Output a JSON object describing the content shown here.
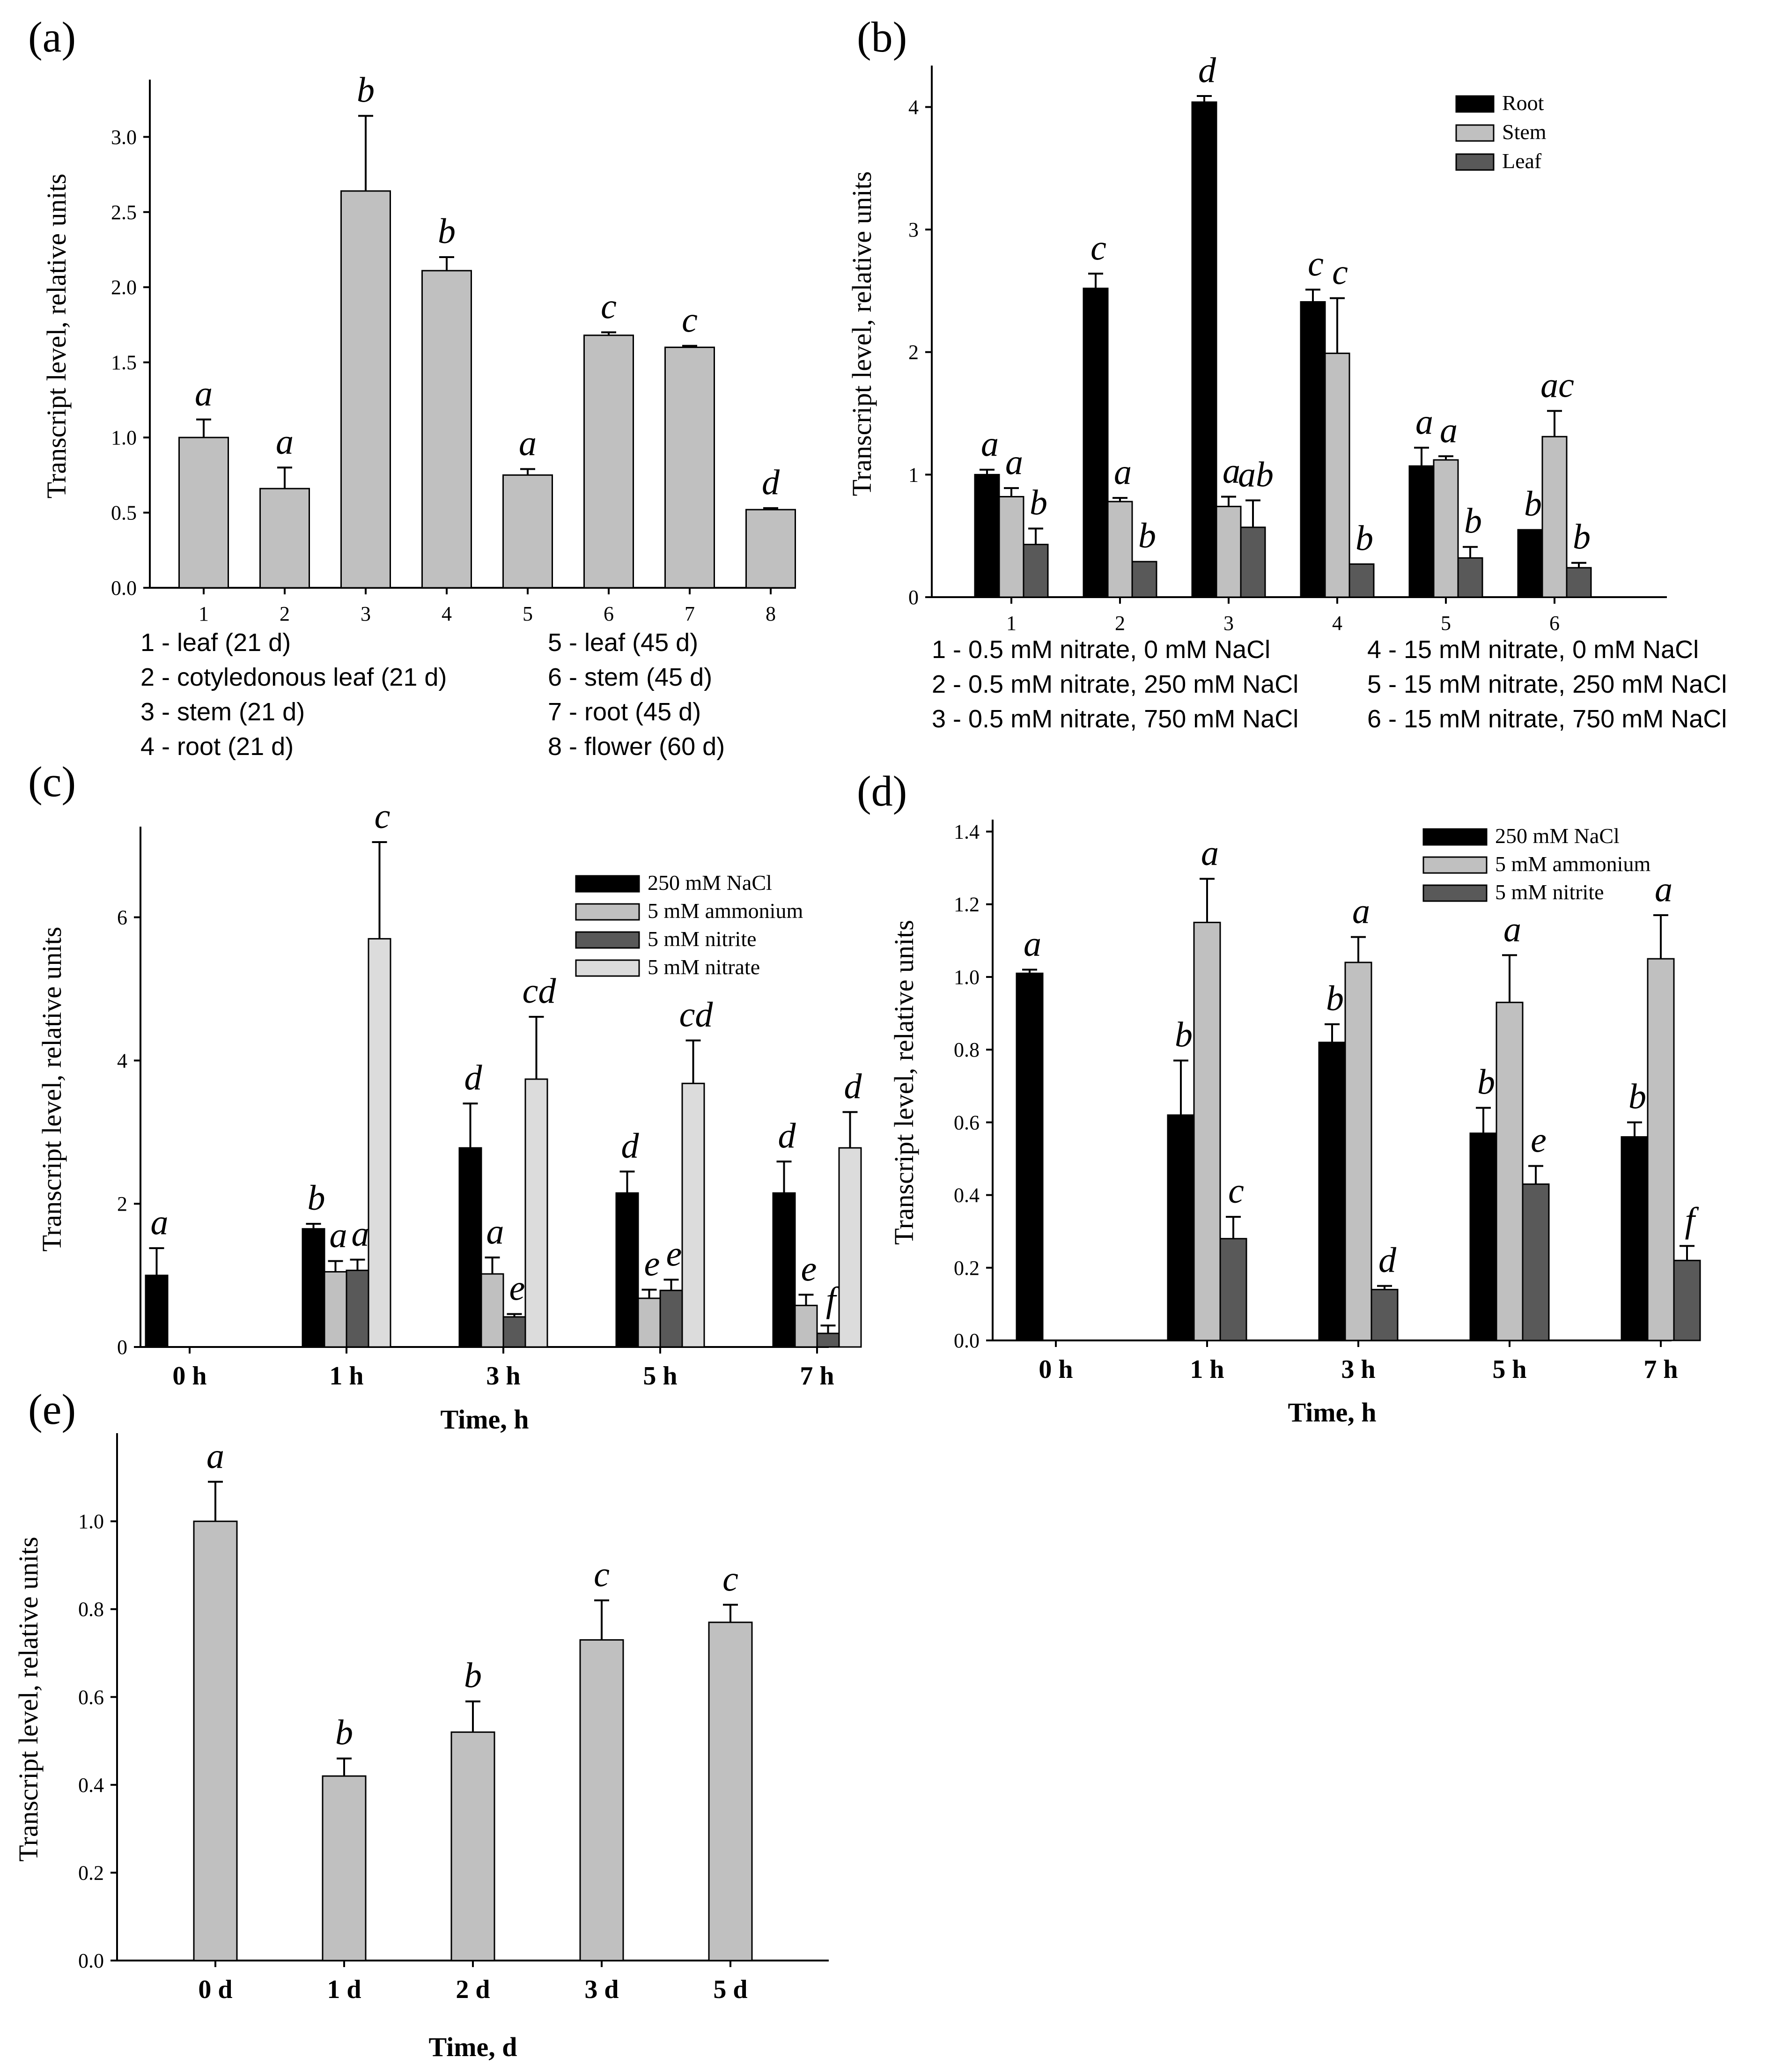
{
  "colors": {
    "black": "#000000",
    "light": "#c0c0c0",
    "dark": "#595959",
    "vlight": "#dcdcdc"
  },
  "chart_data": [
    {
      "id": "a",
      "panel_label": "(a)",
      "type": "bar",
      "categories": [
        "1",
        "2",
        "3",
        "4",
        "5",
        "6",
        "7",
        "8"
      ],
      "series": [
        {
          "name": "",
          "color": "#c0c0c0",
          "values": [
            1.0,
            0.66,
            2.64,
            2.11,
            0.75,
            1.68,
            1.6,
            0.52
          ],
          "errors": [
            0.12,
            0.14,
            0.5,
            0.09,
            0.04,
            0.02,
            0.01,
            0.01
          ],
          "letters": [
            "a",
            "a",
            "b",
            "b",
            "a",
            "c",
            "c",
            "d"
          ]
        }
      ],
      "xlabel": "",
      "ylabel": "Transcript level, relative units",
      "ylim": [
        0,
        3.35
      ],
      "yticks": [
        "0.0",
        "0.5",
        "1.0",
        "1.5",
        "2.0",
        "2.5",
        "3.0"
      ],
      "notes_left": [
        "1 - leaf (21 d)",
        "2 - cotyledonous leaf (21 d)",
        "3 - stem (21 d)",
        "4 - root (21 d)"
      ],
      "notes_right": [
        "5 - leaf (45 d)",
        "6 - stem (45 d)",
        "7 - root (45 d)",
        "8 - flower (60 d)"
      ]
    },
    {
      "id": "b",
      "panel_label": "(b)",
      "type": "bar",
      "categories": [
        "1",
        "2",
        "3",
        "4",
        "5",
        "6"
      ],
      "series": [
        {
          "name": "Root",
          "color": "#000000",
          "values": [
            1.0,
            2.52,
            4.04,
            2.41,
            1.07,
            0.55
          ],
          "errors": [
            0.04,
            0.12,
            0.05,
            0.1,
            0.15,
            0.0
          ],
          "letters": [
            "a",
            "c",
            "d",
            "c",
            "a",
            "b"
          ]
        },
        {
          "name": "Stem",
          "color": "#c0c0c0",
          "values": [
            0.82,
            0.78,
            0.74,
            1.99,
            1.12,
            1.31
          ],
          "errors": [
            0.07,
            0.03,
            0.08,
            0.45,
            0.03,
            0.21
          ],
          "letters": [
            "a",
            "a",
            "a",
            "c",
            "a",
            "ac"
          ]
        },
        {
          "name": "Leaf",
          "color": "#595959",
          "values": [
            0.43,
            0.29,
            0.57,
            0.27,
            0.32,
            0.24
          ],
          "errors": [
            0.13,
            0.0,
            0.22,
            0.0,
            0.09,
            0.04
          ],
          "letters": [
            "b",
            "b",
            "ab",
            "b",
            "b",
            "b"
          ]
        }
      ],
      "xlabel": "",
      "ylabel": "Transcript level, relative units",
      "ylim": [
        0,
        4.3
      ],
      "yticks": [
        "0",
        "1",
        "2",
        "3",
        "4"
      ],
      "notes_left": [
        "1 - 0.5 mM nitrate, 0 mM NaCl",
        "2 - 0.5 mM nitrate, 250 mM NaCl",
        "3 - 0.5 mM nitrate, 750 mM NaCl"
      ],
      "notes_right": [
        "4 - 15 mM nitrate, 0 mM NaCl",
        "5 - 15 mM nitrate, 250 mM NaCl",
        "6 - 15 mM nitrate, 750 mM NaCl"
      ]
    },
    {
      "id": "c",
      "panel_label": "(c)",
      "type": "bar",
      "categories": [
        "0 h",
        "1 h",
        "3 h",
        "5 h",
        "7 h"
      ],
      "series": [
        {
          "name": "250 mM NaCl",
          "color": "#000000",
          "values": [
            1.0,
            1.65,
            2.78,
            2.15,
            2.15
          ],
          "errors": [
            0.38,
            0.07,
            0.62,
            0.3,
            0.44
          ],
          "letters": [
            "a",
            "b",
            "d",
            "d",
            "d"
          ]
        },
        {
          "name": "5 mM ammonium",
          "color": "#c0c0c0",
          "values": [
            null,
            1.05,
            1.02,
            0.68,
            0.58
          ],
          "errors": [
            0,
            0.15,
            0.23,
            0.12,
            0.15
          ],
          "letters": [
            "",
            "a",
            "a",
            "e",
            "e"
          ]
        },
        {
          "name": "5 mM nitrite",
          "color": "#595959",
          "values": [
            null,
            1.07,
            0.42,
            0.79,
            0.19
          ],
          "errors": [
            0,
            0.15,
            0.04,
            0.15,
            0.11
          ],
          "letters": [
            "",
            "a",
            "e",
            "e",
            "f"
          ]
        },
        {
          "name": "5 mM nitrate",
          "color": "#dcdcdc",
          "values": [
            null,
            5.7,
            3.74,
            3.68,
            2.78
          ],
          "errors": [
            0,
            1.35,
            0.87,
            0.6,
            0.5
          ],
          "letters": [
            "",
            "c",
            "cd",
            "cd",
            "d"
          ]
        }
      ],
      "xlabel": "Time, h",
      "ylabel": "Transcript level, relative units",
      "ylim": [
        0,
        7.2
      ],
      "yticks": [
        "0",
        "2",
        "4",
        "6"
      ]
    },
    {
      "id": "d",
      "panel_label": "(d)",
      "type": "bar",
      "categories": [
        "0 h",
        "1 h",
        "3 h",
        "5 h",
        "7 h"
      ],
      "series": [
        {
          "name": "250 mM NaCl",
          "color": "#000000",
          "values": [
            1.01,
            0.62,
            0.82,
            0.57,
            0.56
          ],
          "errors": [
            0.01,
            0.15,
            0.05,
            0.07,
            0.04
          ],
          "letters": [
            "a",
            "b",
            "b",
            "b",
            "b"
          ]
        },
        {
          "name": "5 mM ammonium",
          "color": "#c0c0c0",
          "values": [
            null,
            1.15,
            1.04,
            0.93,
            1.05
          ],
          "errors": [
            0,
            0.12,
            0.07,
            0.13,
            0.12
          ],
          "letters": [
            "",
            "a",
            "a",
            "a",
            "a"
          ]
        },
        {
          "name": "5 mM nitrite",
          "color": "#595959",
          "values": [
            null,
            0.28,
            0.14,
            0.43,
            0.22
          ],
          "errors": [
            0,
            0.06,
            0.01,
            0.05,
            0.04
          ],
          "letters": [
            "",
            "c",
            "d",
            "e",
            "f"
          ]
        }
      ],
      "xlabel": "Time, h",
      "ylabel": "Transcript level, relative units",
      "ylim": [
        0,
        1.42
      ],
      "yticks": [
        "0.0",
        "0.2",
        "0.4",
        "0.6",
        "0.8",
        "1.0",
        "1.2",
        "1.4"
      ]
    },
    {
      "id": "e",
      "panel_label": "(e)",
      "type": "bar",
      "categories": [
        "0 d",
        "1 d",
        "2 d",
        "3 d",
        "5 d"
      ],
      "series": [
        {
          "name": "",
          "color": "#c0c0c0",
          "values": [
            1.0,
            0.42,
            0.52,
            0.73,
            0.77
          ],
          "errors": [
            0.09,
            0.04,
            0.07,
            0.09,
            0.04
          ],
          "letters": [
            "a",
            "b",
            "b",
            "c",
            "c"
          ]
        }
      ],
      "xlabel": "Time, d",
      "ylabel": "Transcript level, relative units",
      "ylim": [
        0,
        1.19
      ],
      "yticks": [
        "0.0",
        "0.2",
        "0.4",
        "0.6",
        "0.8",
        "1.0"
      ]
    }
  ]
}
